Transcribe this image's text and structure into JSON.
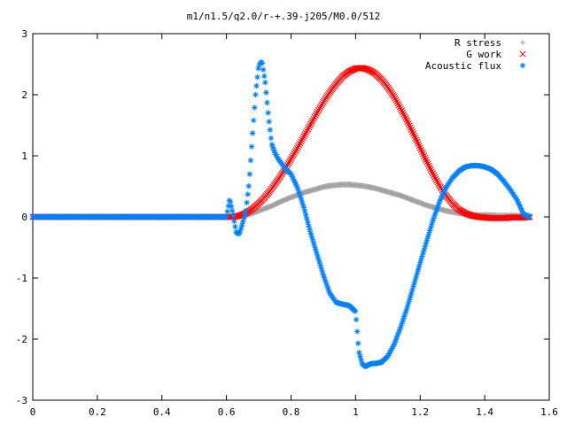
{
  "chart_data": {
    "type": "scatter",
    "title": "m1/n1.5/q2.0/r-+.39-j205/M0.0/512",
    "xlabel": "",
    "ylabel": "",
    "xlim": [
      0,
      1.6
    ],
    "ylim": [
      -3,
      3
    ],
    "x_ticks": [
      "0",
      "0.2",
      "0.4",
      "0.6",
      "0.8",
      "1",
      "1.2",
      "1.4",
      "1.6"
    ],
    "y_ticks": [
      "-3",
      "-2",
      "-1",
      "0",
      "1",
      "2",
      "3"
    ],
    "grid": false,
    "legend_position": "top-right",
    "series": [
      {
        "name": "R stress",
        "marker": "+",
        "color": "#a0a0a0",
        "x": [
          0.0,
          0.1,
          0.2,
          0.3,
          0.4,
          0.5,
          0.6,
          0.62,
          0.64,
          0.66,
          0.68,
          0.7,
          0.72,
          0.74,
          0.76,
          0.78,
          0.8,
          0.82,
          0.84,
          0.86,
          0.88,
          0.9,
          0.92,
          0.94,
          0.96,
          0.98,
          1.0,
          1.02,
          1.04,
          1.06,
          1.08,
          1.1,
          1.12,
          1.14,
          1.16,
          1.18,
          1.2,
          1.22,
          1.24,
          1.26,
          1.28,
          1.3,
          1.32,
          1.34,
          1.36,
          1.38,
          1.4,
          1.42,
          1.44,
          1.46,
          1.48,
          1.5,
          1.52,
          1.54
        ],
        "y": [
          0,
          0,
          0,
          0,
          0,
          0,
          0,
          0.0,
          0.01,
          0.03,
          0.06,
          0.1,
          0.14,
          0.18,
          0.23,
          0.28,
          0.32,
          0.36,
          0.4,
          0.43,
          0.46,
          0.49,
          0.51,
          0.52,
          0.53,
          0.53,
          0.52,
          0.51,
          0.49,
          0.47,
          0.44,
          0.41,
          0.38,
          0.35,
          0.31,
          0.27,
          0.23,
          0.19,
          0.16,
          0.13,
          0.1,
          0.08,
          0.06,
          0.05,
          0.04,
          0.03,
          0.03,
          0.03,
          0.02,
          0.02,
          0.02,
          0.02,
          0.02,
          0.02
        ]
      },
      {
        "name": "G work",
        "marker": "x",
        "color": "#ff0000",
        "x": [
          0.0,
          0.1,
          0.2,
          0.3,
          0.4,
          0.5,
          0.6,
          0.62,
          0.64,
          0.66,
          0.68,
          0.7,
          0.72,
          0.74,
          0.76,
          0.78,
          0.8,
          0.82,
          0.84,
          0.86,
          0.88,
          0.9,
          0.92,
          0.94,
          0.96,
          0.98,
          1.0,
          1.02,
          1.04,
          1.06,
          1.08,
          1.1,
          1.12,
          1.14,
          1.16,
          1.18,
          1.2,
          1.22,
          1.24,
          1.26,
          1.28,
          1.3,
          1.32,
          1.34,
          1.36,
          1.38,
          1.4,
          1.42,
          1.44,
          1.46,
          1.48,
          1.5,
          1.52,
          1.54
        ],
        "y": [
          0,
          0,
          0,
          0,
          0,
          0,
          0,
          0.0,
          0.02,
          0.06,
          0.13,
          0.22,
          0.33,
          0.46,
          0.61,
          0.77,
          0.95,
          1.13,
          1.32,
          1.51,
          1.7,
          1.88,
          2.04,
          2.18,
          2.3,
          2.38,
          2.43,
          2.44,
          2.41,
          2.35,
          2.25,
          2.12,
          1.96,
          1.77,
          1.57,
          1.35,
          1.13,
          0.91,
          0.7,
          0.51,
          0.35,
          0.22,
          0.12,
          0.06,
          0.02,
          0.0,
          -0.01,
          -0.02,
          -0.02,
          -0.02,
          -0.01,
          -0.01,
          -0.01,
          0.0
        ]
      },
      {
        "name": "Acoustic flux",
        "marker": "*",
        "color": "#0080ff",
        "x": [
          0.0,
          0.1,
          0.2,
          0.3,
          0.4,
          0.5,
          0.6,
          0.61,
          0.62,
          0.63,
          0.64,
          0.65,
          0.66,
          0.67,
          0.68,
          0.69,
          0.7,
          0.71,
          0.72,
          0.73,
          0.74,
          0.75,
          0.76,
          0.77,
          0.78,
          0.79,
          0.8,
          0.82,
          0.84,
          0.86,
          0.88,
          0.9,
          0.92,
          0.94,
          0.96,
          0.98,
          1.0,
          1.01,
          1.02,
          1.03,
          1.04,
          1.05,
          1.06,
          1.08,
          1.1,
          1.12,
          1.14,
          1.16,
          1.18,
          1.2,
          1.22,
          1.24,
          1.26,
          1.28,
          1.3,
          1.32,
          1.34,
          1.36,
          1.38,
          1.4,
          1.42,
          1.44,
          1.46,
          1.48,
          1.5,
          1.52,
          1.53,
          1.54
        ],
        "y": [
          0,
          0,
          0,
          0,
          0,
          0,
          0,
          0.3,
          0.05,
          -0.25,
          -0.28,
          -0.1,
          0.1,
          0.55,
          1.3,
          2.0,
          2.48,
          2.55,
          2.2,
          1.65,
          1.2,
          1.05,
          0.95,
          0.88,
          0.8,
          0.75,
          0.7,
          0.48,
          0.15,
          -0.25,
          -0.6,
          -0.95,
          -1.25,
          -1.4,
          -1.43,
          -1.45,
          -1.55,
          -2.2,
          -2.4,
          -2.45,
          -2.42,
          -2.4,
          -2.4,
          -2.38,
          -2.28,
          -2.08,
          -1.8,
          -1.48,
          -1.12,
          -0.75,
          -0.4,
          -0.05,
          0.25,
          0.48,
          0.64,
          0.75,
          0.82,
          0.84,
          0.84,
          0.82,
          0.78,
          0.7,
          0.58,
          0.44,
          0.28,
          0.05,
          0.02,
          0.0
        ]
      }
    ]
  }
}
